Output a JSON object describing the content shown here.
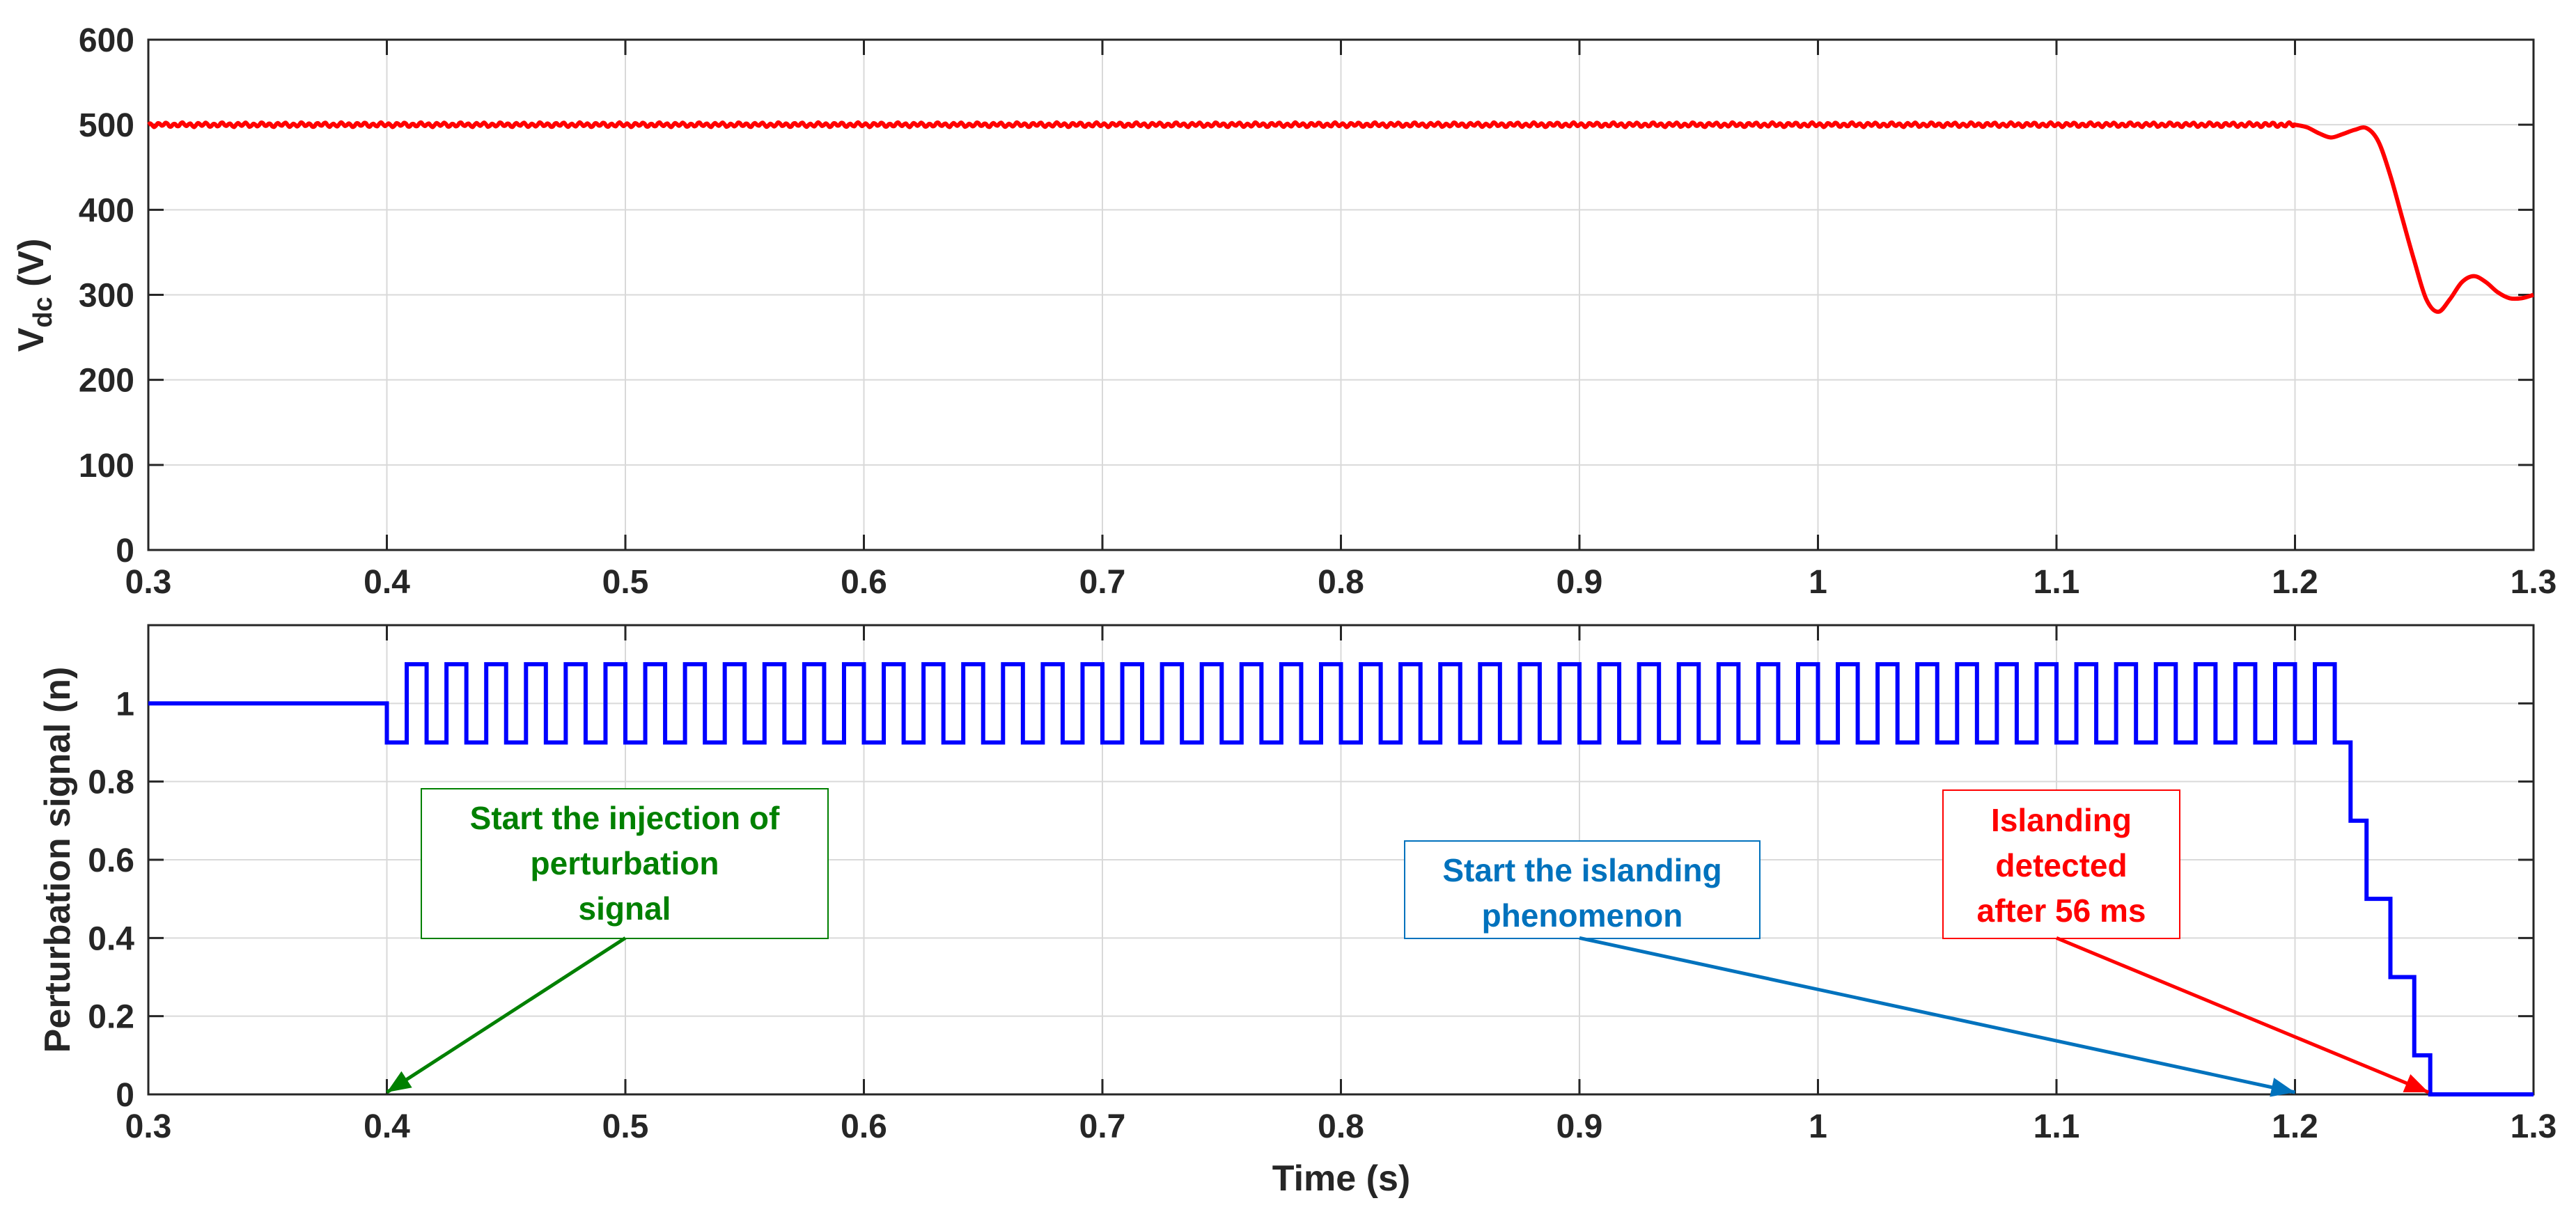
{
  "colors": {
    "vdc_line": "#ff0000",
    "perturbation_line": "#0000ff",
    "annotation_injection": "#008000",
    "annotation_islanding": "#0072bd",
    "annotation_detected": "#ff0000",
    "axis": "#262626",
    "grid": "#d9d9d9"
  },
  "chart_data": [
    {
      "id": "top",
      "type": "line",
      "title": "",
      "xlabel": "",
      "ylabel_main": "V",
      "ylabel_sub": "dc",
      "ylabel_unit": " (V)",
      "xlim": [
        0.3,
        1.3
      ],
      "ylim": [
        0,
        600
      ],
      "xticks": [
        0.3,
        0.4,
        0.5,
        0.6,
        0.7,
        0.8,
        0.9,
        1,
        1.1,
        1.2,
        1.3
      ],
      "xtick_labels": [
        "0.3",
        "0.4",
        "0.5",
        "0.6",
        "0.7",
        "0.8",
        "0.9",
        "1",
        "1.1",
        "1.2",
        "1.3"
      ],
      "yticks": [
        0,
        100,
        200,
        300,
        400,
        500,
        600
      ],
      "ytick_labels": [
        "0",
        "100",
        "200",
        "300",
        "400",
        "500",
        "600"
      ],
      "grid": true,
      "series": [
        {
          "name": "Vdc",
          "color": "#ff0000",
          "nominal": 500,
          "ripple": 2,
          "x": [
            1.2,
            1.205,
            1.21,
            1.215,
            1.22,
            1.225,
            1.23,
            1.235,
            1.24,
            1.245,
            1.25,
            1.255,
            1.26,
            1.265,
            1.27,
            1.275,
            1.28,
            1.285,
            1.29,
            1.295,
            1.3
          ],
          "y": [
            500,
            497,
            490,
            485,
            489,
            494,
            496,
            480,
            440,
            390,
            340,
            295,
            280,
            295,
            315,
            322,
            315,
            303,
            296,
            296,
            300
          ]
        }
      ]
    },
    {
      "id": "bottom",
      "type": "line",
      "title": "",
      "xlabel": "Time (s)",
      "ylabel": "Perturbation signal (n)",
      "xlim": [
        0.3,
        1.3
      ],
      "ylim": [
        0,
        1.2
      ],
      "xticks": [
        0.3,
        0.4,
        0.5,
        0.6,
        0.7,
        0.8,
        0.9,
        1,
        1.1,
        1.2,
        1.3
      ],
      "xtick_labels": [
        "0.3",
        "0.4",
        "0.5",
        "0.6",
        "0.7",
        "0.8",
        "0.9",
        "1",
        "1.1",
        "1.2",
        "1.3"
      ],
      "yticks": [
        0,
        0.2,
        0.4,
        0.6,
        0.8,
        1
      ],
      "ytick_labels": [
        "0",
        "0.2",
        "0.4",
        "0.6",
        "0.8",
        "1"
      ],
      "grid": true,
      "series": [
        {
          "name": "n",
          "color": "#0000ff",
          "pre_value": 1.0,
          "injection_start": 0.4,
          "square_wave": {
            "high": 1.1,
            "low": 0.9,
            "period": 0.0166667,
            "start": 0.4,
            "end": 1.2167,
            "start_level": "low"
          },
          "decay_steps": [
            {
              "x": 1.2167,
              "y": 0.9
            },
            {
              "x": 1.2233,
              "y": 0.7
            },
            {
              "x": 1.23,
              "y": 0.5
            },
            {
              "x": 1.24,
              "y": 0.3
            },
            {
              "x": 1.25,
              "y": 0.1
            },
            {
              "x": 1.2567,
              "y": 0.0
            },
            {
              "x": 1.3,
              "y": 0.0
            }
          ]
        }
      ],
      "annotations": [
        {
          "key": "injection",
          "lines": [
            "Start the injection of",
            "perturbation",
            "signal"
          ],
          "color": "#008000",
          "arrow_tail": {
            "x": 0.5,
            "y": 0.4
          },
          "arrow_head": {
            "x": 0.4,
            "y": 0.0
          }
        },
        {
          "key": "islanding",
          "lines": [
            "Start the islanding",
            "phenomenon"
          ],
          "color": "#0072bd",
          "arrow_tail": {
            "x": 0.9,
            "y": 0.4
          },
          "arrow_head": {
            "x": 1.2,
            "y": 0.0
          }
        },
        {
          "key": "detected",
          "lines": [
            "Islanding",
            "detected",
            "after 56 ms"
          ],
          "color": "#ff0000",
          "arrow_tail": {
            "x": 1.1,
            "y": 0.4
          },
          "arrow_head": {
            "x": 1.256,
            "y": 0.0
          }
        }
      ]
    }
  ]
}
